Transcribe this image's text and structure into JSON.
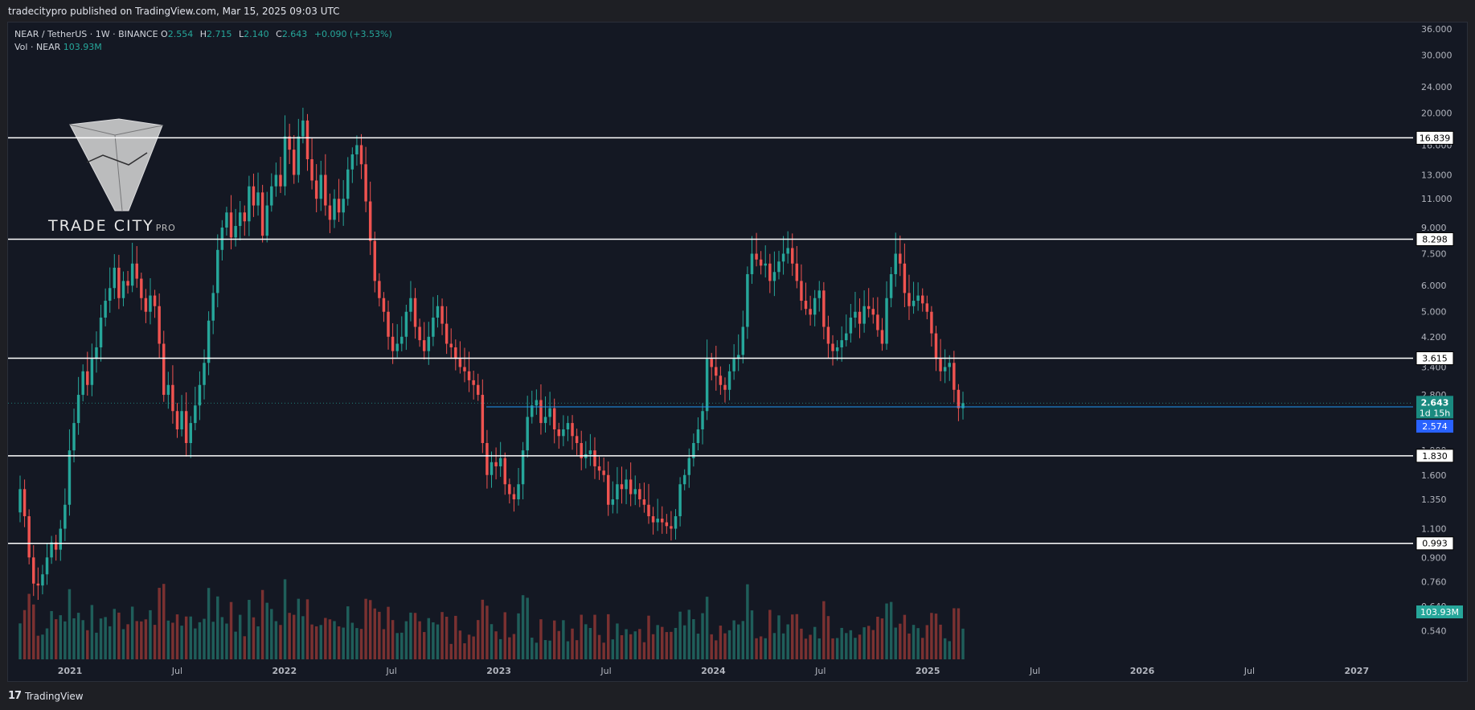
{
  "publisher": "tradecitypro published on TradingView.com, Mar 15, 2025 09:03 UTC",
  "footer": {
    "brand": "TradingView"
  },
  "watermark": {
    "name": "TRADE CITY",
    "suffix": "PRO"
  },
  "legend": {
    "symbol": "NEAR / TetherUS · 1W · BINANCE",
    "o_label": "O",
    "o": "2.554",
    "h_label": "H",
    "h": "2.715",
    "l_label": "L",
    "l": "2.140",
    "c_label": "C",
    "c": "2.643",
    "change": "+0.090 (+3.53%)",
    "vol_label": "Vol · NEAR",
    "vol": "103.93M"
  },
  "colors": {
    "background": "#141823",
    "bull": "#26a69a",
    "bear": "#ef5350",
    "vol_bull": "#1f5e5a",
    "vol_bear": "#7a3131",
    "level": "#ffffff",
    "current_price_line": "#2196f3",
    "axis_text": "#b2b5be"
  },
  "chart_data": {
    "type": "candlestick",
    "title": "NEAR / TetherUS · 1W · BINANCE",
    "scale": "log",
    "ylim": [
      0.5,
      36
    ],
    "y_ticks": [
      "36.000",
      "30.000",
      "24.000",
      "20.000",
      "16.000",
      "13.000",
      "11.000",
      "9.000",
      "7.500",
      "6.000",
      "5.000",
      "4.200",
      "3.400",
      "2.800",
      "1.900",
      "1.600",
      "1.350",
      "1.100",
      "0.900",
      "0.760",
      "0.640",
      "0.540"
    ],
    "x_ticks": [
      "2021",
      "Jul",
      "2022",
      "Jul",
      "2023",
      "Jul",
      "2024",
      "Jul",
      "2025",
      "Jul",
      "2026",
      "Jul",
      "2027"
    ],
    "horizontal_levels": [
      {
        "label": "16.839",
        "value": 16.839
      },
      {
        "label": "8.298",
        "value": 8.298
      },
      {
        "label": "3.615",
        "value": 3.615
      },
      {
        "label": "1.830",
        "value": 1.83
      },
      {
        "label": "0.993",
        "value": 0.993
      }
    ],
    "current_price": {
      "value": 2.643,
      "label": "2.643",
      "countdown": "1d 15h"
    },
    "blue_level": {
      "value": 2.574,
      "label": "2.574"
    },
    "volume_label": "103.93M",
    "weekly_closes": [
      1.45,
      1.2,
      0.9,
      0.75,
      0.74,
      0.8,
      0.9,
      1.0,
      0.95,
      1.1,
      1.3,
      1.9,
      2.3,
      2.8,
      3.3,
      3.0,
      3.6,
      3.9,
      4.8,
      5.4,
      5.9,
      6.8,
      5.5,
      6.2,
      6.0,
      7.0,
      6.3,
      5.5,
      5.0,
      5.6,
      5.2,
      4.0,
      2.8,
      3.0,
      2.5,
      2.2,
      2.5,
      2.0,
      2.3,
      2.6,
      3.0,
      3.5,
      4.7,
      5.7,
      7.7,
      9.0,
      10.0,
      8.4,
      9.1,
      10.0,
      9.4,
      12.0,
      10.5,
      11.5,
      8.5,
      10.5,
      12.0,
      13.0,
      12.0,
      17.0,
      15.5,
      13.0,
      17.0,
      19.0,
      14.5,
      12.5,
      11.0,
      13.0,
      10.5,
      9.5,
      11.0,
      10.0,
      11.0,
      13.5,
      15.0,
      16.0,
      14.0,
      10.8,
      8.2,
      6.2,
      5.5,
      5.0,
      4.2,
      3.8,
      4.0,
      4.2,
      5.0,
      5.5,
      4.5,
      4.1,
      3.8,
      4.2,
      4.8,
      5.2,
      4.6,
      4.0,
      3.9,
      3.6,
      3.4,
      3.3,
      3.1,
      3.0,
      2.8,
      2.0,
      1.6,
      1.75,
      1.7,
      1.8,
      1.5,
      1.4,
      1.35,
      1.5,
      1.9,
      2.4,
      2.6,
      2.7,
      2.3,
      2.4,
      2.55,
      2.2,
      2.1,
      2.2,
      2.3,
      2.1,
      2.0,
      1.8,
      1.85,
      1.9,
      1.7,
      1.65,
      1.6,
      1.3,
      1.35,
      1.5,
      1.45,
      1.55,
      1.4,
      1.45,
      1.35,
      1.3,
      1.2,
      1.15,
      1.18,
      1.15,
      1.12,
      1.1,
      1.2,
      1.5,
      1.6,
      1.8,
      2.0,
      2.2,
      2.5,
      3.6,
      3.4,
      3.2,
      3.0,
      2.9,
      3.3,
      3.6,
      3.7,
      4.5,
      6.5,
      7.5,
      7.2,
      6.9,
      7.0,
      6.2,
      6.6,
      7.1,
      7.5,
      7.8,
      7.0,
      6.2,
      5.4,
      5.1,
      4.9,
      5.5,
      5.8,
      4.5,
      4.0,
      3.8,
      3.9,
      4.1,
      4.3,
      4.8,
      5.0,
      4.6,
      5.2,
      5.1,
      4.9,
      4.4,
      4.0,
      5.5,
      6.5,
      7.5,
      7.0,
      5.7,
      5.2,
      5.4,
      5.6,
      5.3,
      5.0,
      4.3,
      3.6,
      3.3,
      3.4,
      3.5,
      2.9,
      2.55,
      2.643
    ]
  }
}
